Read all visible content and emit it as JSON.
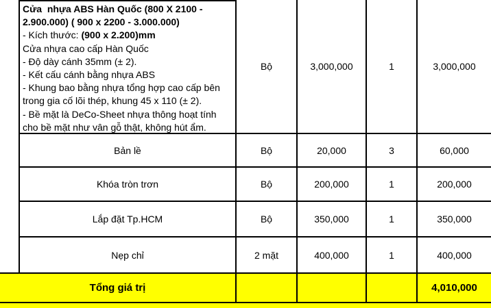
{
  "colors": {
    "highlight_yellow": "#ffff00",
    "border_black": "#000000",
    "text_black": "#000000",
    "page_white": "#ffffff"
  },
  "quote_table": {
    "product": {
      "title": "Cửa  nhựa ABS Hàn Quốc (800 X 2100 - 2.900.000) ( 900 x 2200 - 3.000.000)",
      "size_label": "- Kích thước: ",
      "size_value": "(900 x 2.200)mm",
      "details": [
        "Cửa nhựa cao cấp Hàn Quốc",
        "- Độ dày cánh 35mm (± 2).",
        "- Kết cấu cánh bằng nhựa ABS",
        "- Khung bao bằng nhựa tổng hợp cao cấp bên trong gia cố lõi thép, khung 45 x 110 (± 2).",
        "- Bề mặt là DeCo-Sheet nhựa thông hoạt tính cho bề mặt như vân gỗ thật, không hút ẩm."
      ],
      "unit": "Bộ",
      "unit_price": "3,000,000",
      "quantity": "1",
      "amount": "3,000,000"
    },
    "items": [
      {
        "name": "Bản lề",
        "unit": "Bộ",
        "unit_price": "20,000",
        "quantity": "3",
        "amount": "60,000"
      },
      {
        "name": "Khóa tròn trơn",
        "unit": "Bộ",
        "unit_price": "200,000",
        "quantity": "1",
        "amount": "200,000"
      },
      {
        "name": "Lắp đặt Tp.HCM",
        "unit": "Bộ",
        "unit_price": "350,000",
        "quantity": "1",
        "amount": "350,000"
      },
      {
        "name": "Nẹp chỉ",
        "unit": "2 mặt",
        "unit_price": "400,000",
        "quantity": "1",
        "amount": "400,000"
      }
    ],
    "total": {
      "label": "Tổng giá trị",
      "amount": "4,010,000"
    }
  }
}
